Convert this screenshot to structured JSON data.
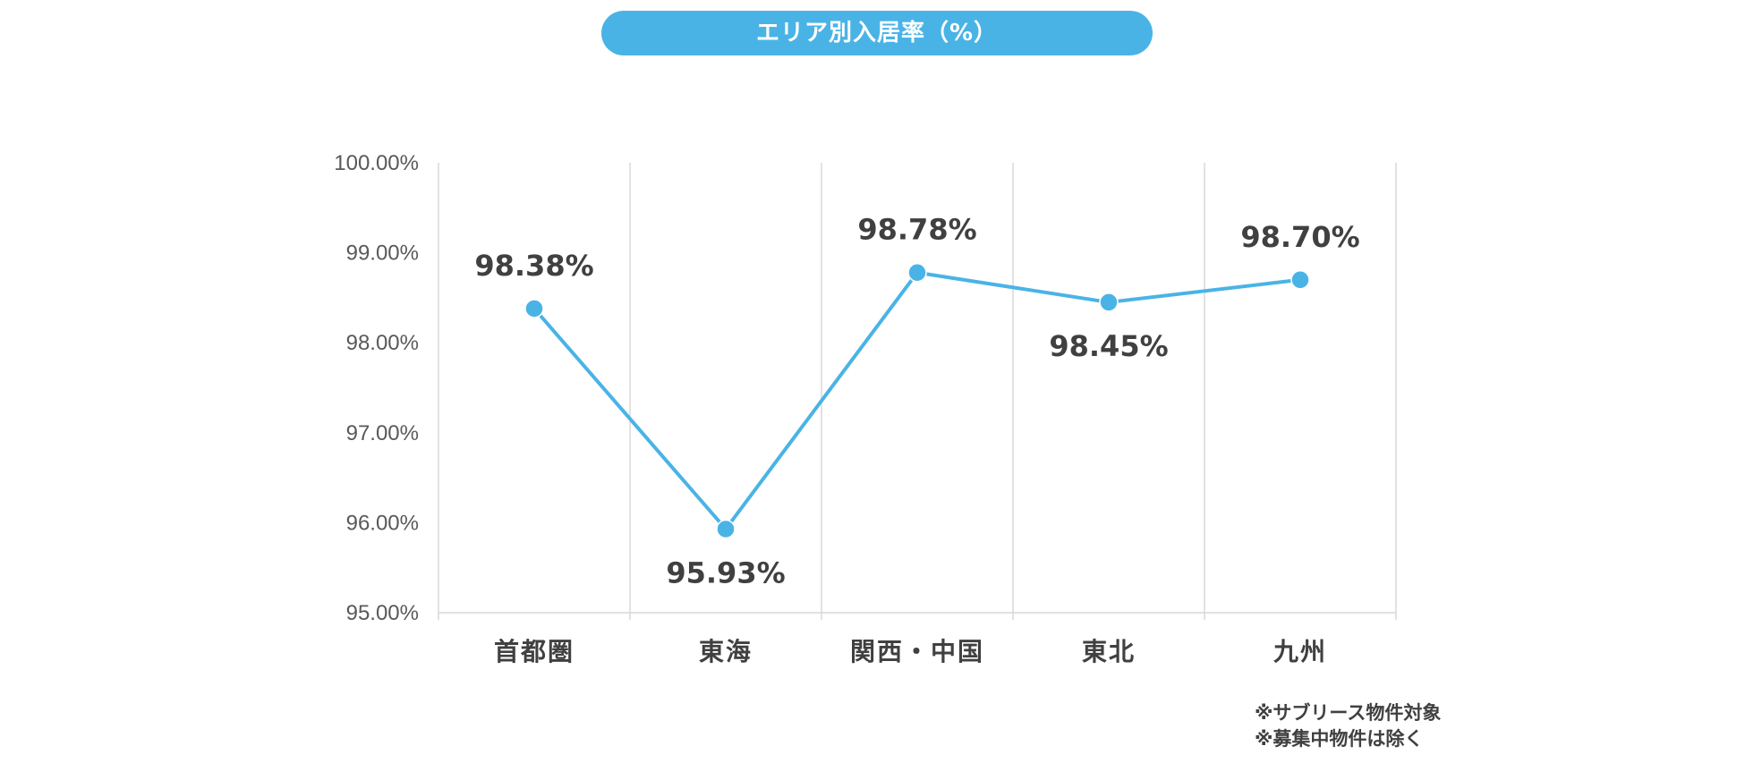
{
  "title": "エリア別入居率（%）",
  "notes": [
    "※サブリース物件対象",
    "※募集中物件は除く"
  ],
  "chart_data": {
    "type": "line",
    "categories": [
      "首都圏",
      "東海",
      "関西・中国",
      "東北",
      "九州"
    ],
    "series": [
      {
        "values": [
          98.38,
          95.93,
          98.78,
          98.45,
          98.7
        ]
      }
    ],
    "data_labels": [
      "98.38%",
      "95.93%",
      "98.78%",
      "98.45%",
      "98.70%"
    ],
    "y_ticks": [
      95,
      96,
      97,
      98,
      99,
      100
    ],
    "y_tick_labels": [
      "95.00%",
      "96.00%",
      "97.00%",
      "98.00%",
      "99.00%",
      "100.00%"
    ],
    "ylim": [
      95,
      100
    ],
    "grid": "vertical",
    "line_color": "#4ab3e6",
    "marker_color": "#4ab3e6",
    "gridline_color": "#d9d9d9"
  }
}
